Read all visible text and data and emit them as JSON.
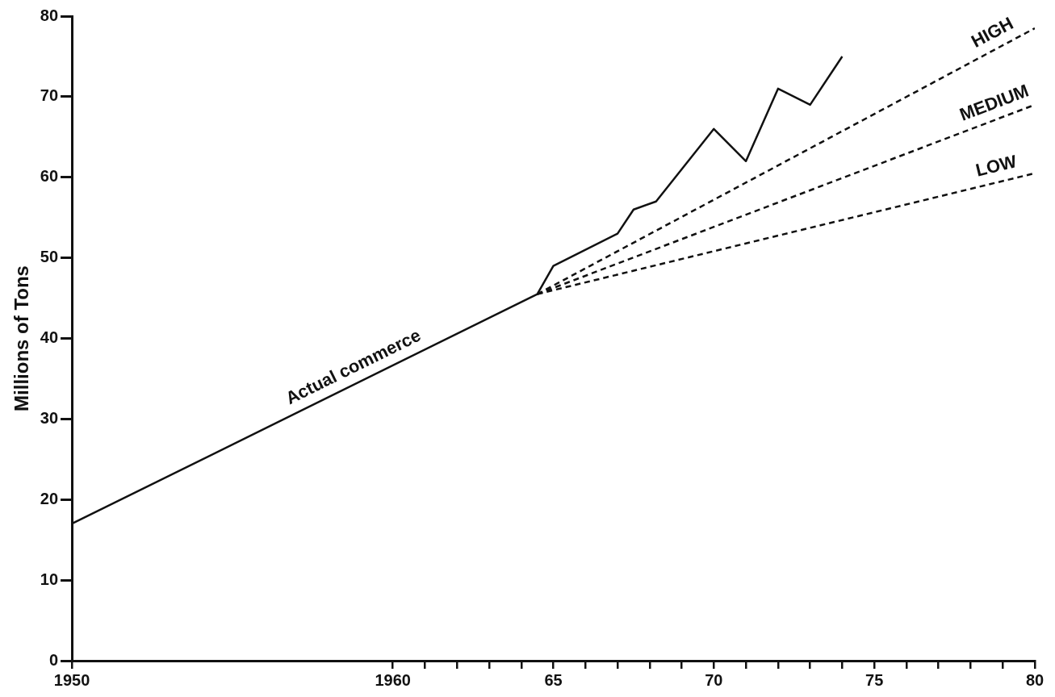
{
  "chart_data": {
    "type": "line",
    "ylabel": "Millions of Tons",
    "xlim": [
      1950,
      1980
    ],
    "ylim": [
      0,
      80
    ],
    "xticks": [
      {
        "value": 1950,
        "label": "1950"
      },
      {
        "value": 1960,
        "label": "1960"
      },
      {
        "value": 1961,
        "label": null
      },
      {
        "value": 1962,
        "label": null
      },
      {
        "value": 1963,
        "label": null
      },
      {
        "value": 1964,
        "label": null
      },
      {
        "value": 1965,
        "label": "65"
      },
      {
        "value": 1966,
        "label": null
      },
      {
        "value": 1967,
        "label": null
      },
      {
        "value": 1968,
        "label": null
      },
      {
        "value": 1969,
        "label": null
      },
      {
        "value": 1970,
        "label": "70"
      },
      {
        "value": 1971,
        "label": null
      },
      {
        "value": 1972,
        "label": null
      },
      {
        "value": 1973,
        "label": null
      },
      {
        "value": 1974,
        "label": null
      },
      {
        "value": 1975,
        "label": "75"
      },
      {
        "value": 1976,
        "label": null
      },
      {
        "value": 1977,
        "label": null
      },
      {
        "value": 1978,
        "label": null
      },
      {
        "value": 1979,
        "label": null
      },
      {
        "value": 1980,
        "label": "80"
      }
    ],
    "yticks": [
      0,
      10,
      20,
      30,
      40,
      50,
      60,
      70,
      80
    ],
    "grid": false,
    "legend": false,
    "marker": "none",
    "series": [
      {
        "name": "Actual commerce",
        "color": "#111111",
        "line_style": "solid",
        "x": [
          1950,
          1964.5,
          1965,
          1967,
          1967.5,
          1968.2,
          1970,
          1971,
          1972,
          1973,
          1974
        ],
        "values": [
          17,
          45.5,
          49,
          53,
          56,
          57,
          66,
          62,
          71,
          69,
          75
        ]
      },
      {
        "name": "HIGH",
        "color": "#111111",
        "line_style": "dashed",
        "x": [
          1964.5,
          1980
        ],
        "values": [
          45.5,
          78.5
        ]
      },
      {
        "name": "MEDIUM",
        "color": "#111111",
        "line_style": "dashed",
        "x": [
          1964.5,
          1980
        ],
        "values": [
          45.5,
          69
        ]
      },
      {
        "name": "LOW",
        "color": "#111111",
        "line_style": "dashed",
        "x": [
          1964.5,
          1980
        ],
        "values": [
          45.5,
          60.5
        ]
      }
    ]
  }
}
